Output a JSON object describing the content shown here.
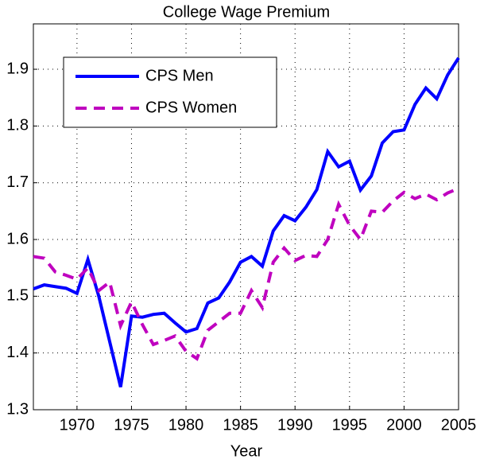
{
  "chart_data": {
    "type": "line",
    "title": "College Wage Premium",
    "x_label": "Year",
    "x": [
      1966,
      1967,
      1968,
      1969,
      1970,
      1971,
      1972,
      1973,
      1974,
      1975,
      1976,
      1977,
      1978,
      1979,
      1980,
      1981,
      1982,
      1983,
      1984,
      1985,
      1986,
      1987,
      1988,
      1989,
      1990,
      1991,
      1992,
      1993,
      1994,
      1995,
      1996,
      1997,
      1998,
      1999,
      2000,
      2001,
      2002,
      2003,
      2004,
      2005
    ],
    "series": [
      {
        "name": "CPS Men",
        "color": "#0000ff",
        "dash": false,
        "values": [
          1.513,
          1.52,
          1.517,
          1.514,
          1.505,
          1.565,
          1.5,
          1.42,
          1.34,
          1.465,
          1.463,
          1.468,
          1.47,
          1.453,
          1.437,
          1.443,
          1.488,
          1.497,
          1.525,
          1.56,
          1.57,
          1.553,
          1.615,
          1.642,
          1.633,
          1.657,
          1.688,
          1.755,
          1.728,
          1.738,
          1.687,
          1.712,
          1.77,
          1.79,
          1.793,
          1.838,
          1.867,
          1.848,
          1.89,
          1.92
        ]
      },
      {
        "name": "CPS Women",
        "color": "#bf00bf",
        "dash": true,
        "values": [
          1.57,
          1.567,
          1.543,
          1.537,
          1.53,
          1.55,
          1.51,
          1.525,
          1.448,
          1.49,
          1.45,
          1.415,
          1.422,
          1.43,
          1.403,
          1.39,
          1.44,
          1.455,
          1.47,
          1.47,
          1.51,
          1.48,
          1.56,
          1.585,
          1.563,
          1.572,
          1.57,
          1.6,
          1.662,
          1.625,
          1.6,
          1.65,
          1.648,
          1.668,
          1.683,
          1.672,
          1.68,
          1.67,
          1.682,
          1.69
        ]
      }
    ],
    "xlim": [
      1966,
      2005
    ],
    "xticks": [
      1970,
      1975,
      1980,
      1985,
      1990,
      1995,
      2000,
      2005
    ],
    "ylim": [
      1.3,
      1.98
    ],
    "yticks": [
      1.3,
      1.4,
      1.5,
      1.6,
      1.7,
      1.8,
      1.9
    ],
    "grid": true,
    "legend": "upper left"
  }
}
